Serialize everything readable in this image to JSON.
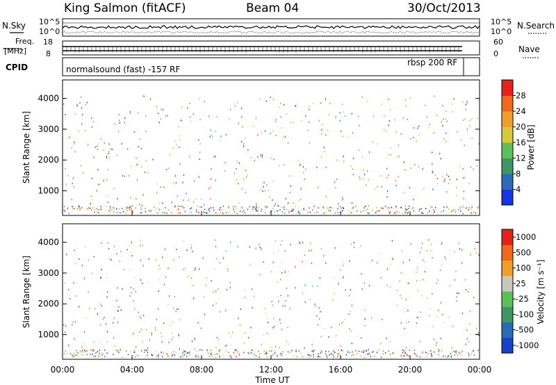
{
  "header": {
    "radar": "King Salmon (fitACF)",
    "beam": "Beam 04",
    "date": "30/Oct/2013"
  },
  "status_panels": {
    "left_top_label": "N.Sky",
    "left_top_ticks": [
      "10^5",
      "10^0"
    ],
    "right_top_label": "N.Search",
    "right_top_ticks": [
      "10^5",
      "10^0"
    ],
    "left_mid_label_line1": "Freq.",
    "left_mid_label_line2": "[MHz]",
    "left_mid_ticks": [
      "18",
      "8"
    ],
    "right_mid_label": "Nave",
    "right_mid_ticks": [
      "60",
      "0"
    ],
    "cpid_label": "CPID",
    "cpid_left": "normalsound (fast) -157 RF",
    "cpid_right": "rbsp 200 RF"
  },
  "chart_data": [
    {
      "type": "heatmap",
      "name": "power",
      "ylabel": "Slant Range [km]",
      "yticks": [
        "1000",
        "2000",
        "3000",
        "4000"
      ],
      "ylim": [
        200,
        4600
      ],
      "xlim_hours": [
        0,
        24
      ],
      "colorbar_label": "Power [dB]",
      "colorbar_ticks": [
        "4",
        "8",
        "12",
        "16",
        "20",
        "24",
        "28"
      ],
      "colorbar_colors": [
        "#1434e6",
        "#2a6ab8",
        "#3f9566",
        "#5cc05a",
        "#d9c83a",
        "#f0a02a",
        "#ef6a1a",
        "#e8201a"
      ]
    },
    {
      "type": "heatmap",
      "name": "velocity",
      "ylabel": "Slant Range [km]",
      "yticks": [
        "1000",
        "2000",
        "3000",
        "4000"
      ],
      "ylim": [
        200,
        4600
      ],
      "xlim_hours": [
        0,
        24
      ],
      "xticks": [
        "00:00",
        "04:00",
        "08:00",
        "12:00",
        "16:00",
        "20:00",
        "00:00"
      ],
      "xlabel": "Time UT",
      "colorbar_label": "Velocity [m s⁻¹]",
      "colorbar_ticks": [
        "1000",
        "500",
        "100",
        "25",
        "-25",
        "-100",
        "-500",
        "-1000"
      ],
      "colorbar_colors": [
        "#1a3fc8",
        "#2a6ab8",
        "#3f9566",
        "#5cc05a",
        "#c8c8c0",
        "#f0a02a",
        "#ef6a1a",
        "#e8201a"
      ]
    }
  ]
}
